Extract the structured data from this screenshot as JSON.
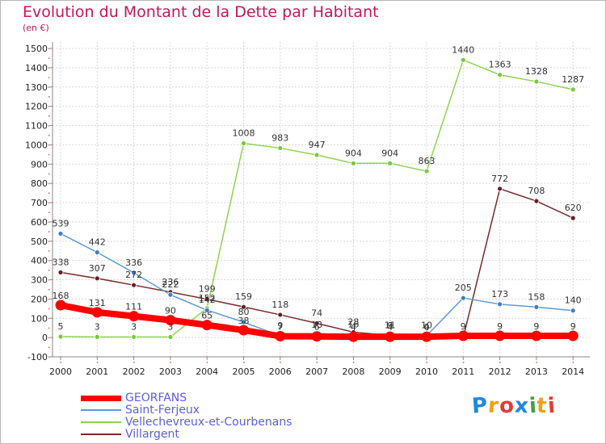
{
  "title": "Evolution du Montant de la Dette par Habitant",
  "unit": "(en €)",
  "logo": {
    "text": "Proxiti",
    "letters": [
      "P",
      "r",
      "o",
      "x",
      "i",
      "t",
      "i"
    ],
    "colors": [
      "#1e88e5",
      "#f4a011",
      "#e53935",
      "#1e88e5",
      "#43a047",
      "#f4a011",
      "#e53935"
    ]
  },
  "chart_data": {
    "type": "line",
    "title": "Evolution du Montant de la Dette par Habitant",
    "ylabel": "(en €)",
    "xlabel": "",
    "x": [
      "2000",
      "2001",
      "2002",
      "2003",
      "2004",
      "2005",
      "2006",
      "2007",
      "2008",
      "2009",
      "2010",
      "2011",
      "2012",
      "2013",
      "2014"
    ],
    "ylim": [
      -100,
      1500
    ],
    "yticks": [
      "-100",
      "0",
      "100",
      "200",
      "300",
      "400",
      "500",
      "600",
      "700",
      "800",
      "900",
      "1000",
      "1100",
      "1200",
      "1300",
      "1400",
      "1500"
    ],
    "grid": true,
    "legend_position": "bottom-left",
    "series": [
      {
        "name": "GEORFANS",
        "color": "#ff0000",
        "marker": "#ff0000",
        "thick": true,
        "values": [
          168,
          131,
          111,
          90,
          65,
          38,
          7,
          6,
          4,
          4,
          4,
          9,
          9,
          9,
          9
        ],
        "labels": [
          "168",
          "131",
          "111",
          "90",
          "65",
          "38",
          "7",
          "6",
          "4",
          "4",
          "4",
          "9",
          "9",
          "9",
          "9"
        ]
      },
      {
        "name": "Saint-Ferjeux",
        "color": "#5b9bd5",
        "marker": "#3a7fc4",
        "values": [
          539,
          442,
          336,
          222,
          142,
          80,
          9,
          13,
          16,
          9,
          10,
          205,
          173,
          158,
          140
        ],
        "labels": [
          "539",
          "442",
          "336",
          "222",
          "142",
          "80",
          "9",
          "13",
          "16",
          "9",
          "10",
          "205",
          "173",
          "158",
          "140"
        ]
      },
      {
        "name": "Vellechevreux-et-Courbenans",
        "color": "#8ed452",
        "marker": "#77c93c",
        "values": [
          5,
          3,
          3,
          3,
          152,
          1008,
          983,
          947,
          904,
          904,
          863,
          1440,
          1363,
          1328,
          1287
        ],
        "labels": [
          "5",
          "3",
          "3",
          "3",
          "152",
          "1008",
          "983",
          "947",
          "904",
          "904",
          "863",
          "1440",
          "1363",
          "1328",
          "1287"
        ]
      },
      {
        "name": "Villargent",
        "color": "#7a2a2a",
        "marker": "#6b1d1d",
        "values": [
          338,
          307,
          272,
          236,
          199,
          159,
          118,
          74,
          28,
          11,
          0,
          0,
          772,
          708,
          620
        ],
        "labels": [
          "338",
          "307",
          "272",
          "236",
          "199",
          "159",
          "118",
          "74",
          "28",
          "11",
          "0",
          "0",
          "772",
          "708",
          "620"
        ]
      }
    ],
    "point_labels_shown": {
      "GEORFANS": [
        0,
        1,
        2,
        3,
        4,
        5,
        6,
        7,
        8,
        9,
        10,
        11,
        12,
        13,
        14
      ],
      "Saint-Ferjeux": [
        0,
        1,
        2,
        3,
        4,
        5,
        6,
        7,
        8,
        9,
        10,
        11,
        12,
        13,
        14
      ],
      "Vellechevreux-et-Courbenans": [
        0,
        1,
        2,
        3,
        4,
        5,
        6,
        7,
        8,
        9,
        10,
        11,
        12,
        13,
        14
      ],
      "Villargent": [
        0,
        1,
        2,
        3,
        4,
        5,
        6,
        7,
        8,
        9,
        10,
        12,
        13,
        14
      ]
    }
  }
}
